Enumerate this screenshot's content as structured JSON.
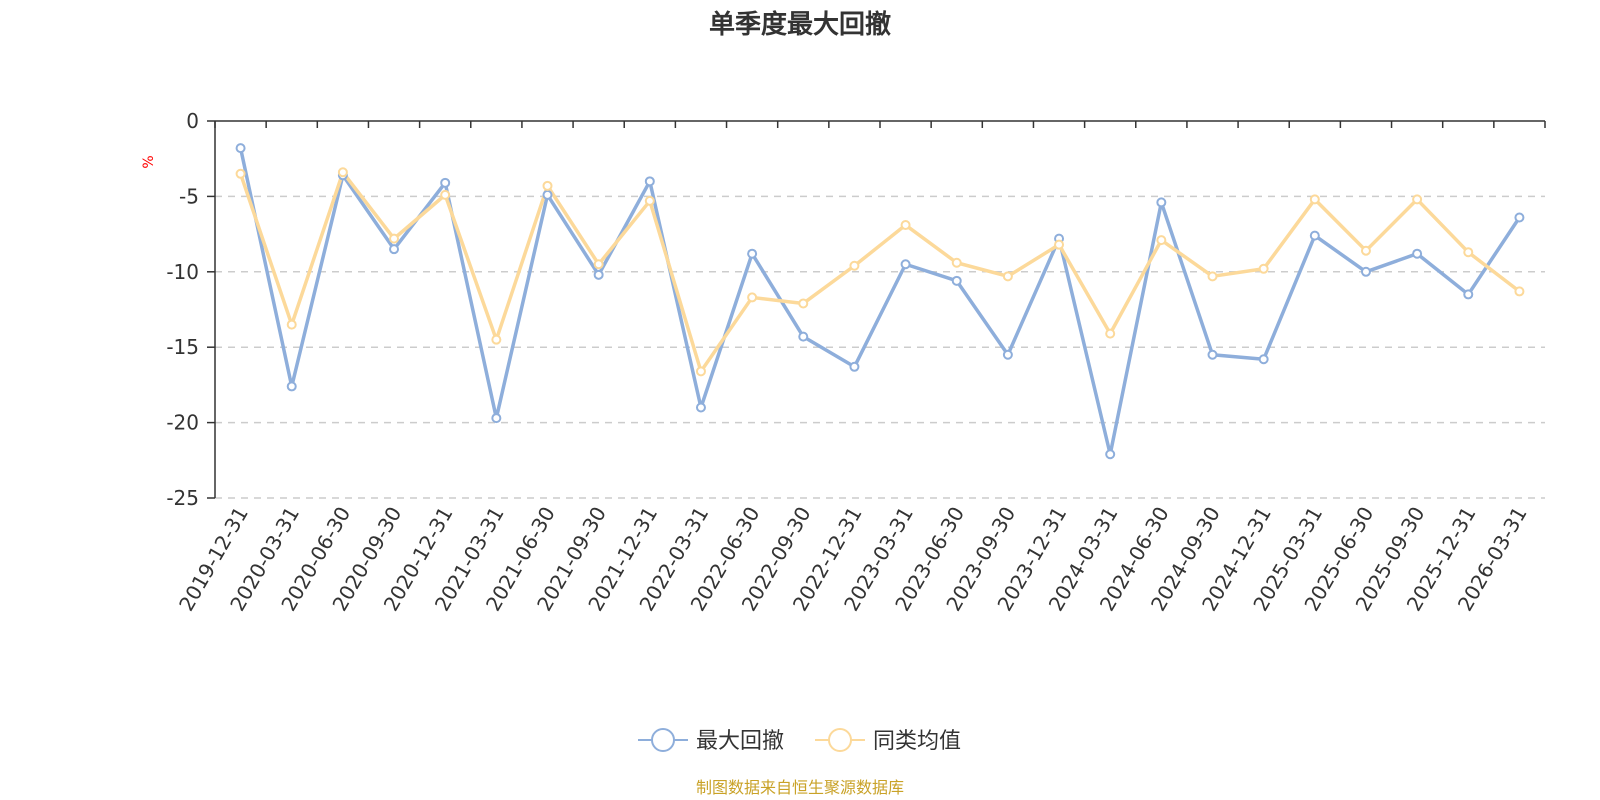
{
  "chart_data": {
    "type": "line",
    "title": "单季度最大回撤",
    "ylabel": "%",
    "xlabel": "",
    "ylim": [
      -25,
      0
    ],
    "yticks": [
      0,
      -5,
      -10,
      -15,
      -20,
      -25
    ],
    "grid": true,
    "legend_position": "bottom-center",
    "categories": [
      "2019-12-31",
      "2020-03-31",
      "2020-06-30",
      "2020-09-30",
      "2020-12-31",
      "2021-03-31",
      "2021-06-30",
      "2021-09-30",
      "2021-12-31",
      "2022-03-31",
      "2022-06-30",
      "2022-09-30",
      "2022-12-31",
      "2023-03-31",
      "2023-06-30",
      "2023-09-30",
      "2023-12-31",
      "2024-03-31",
      "2024-06-30",
      "2024-09-30",
      "2024-12-31",
      "2025-03-31",
      "2025-06-30",
      "2025-09-30",
      "2025-12-31",
      "2026-03-31"
    ],
    "series": [
      {
        "name": "最大回撤",
        "color": "#8eaedb",
        "values": [
          -1.8,
          -17.6,
          -3.6,
          -8.5,
          -4.1,
          -19.7,
          -4.9,
          -10.2,
          -4.0,
          -19.0,
          -8.8,
          -14.3,
          -16.3,
          -9.5,
          -10.6,
          -15.5,
          -7.8,
          -22.1,
          -5.4,
          -15.5,
          -15.8,
          -7.6,
          -10.0,
          -8.8,
          -11.5,
          -6.4
        ]
      },
      {
        "name": "同类均值",
        "color": "#fcd99a",
        "values": [
          -3.5,
          -13.5,
          -3.4,
          -7.8,
          -4.9,
          -14.5,
          -4.3,
          -9.5,
          -5.3,
          -16.6,
          -11.7,
          -12.1,
          -9.6,
          -6.9,
          -9.4,
          -10.3,
          -8.2,
          -14.1,
          -7.9,
          -10.3,
          -9.8,
          -5.2,
          -8.6,
          -5.2,
          -8.7,
          -11.3
        ]
      }
    ]
  },
  "source_text": "制图数据来自恒生聚源数据库",
  "colors": {
    "axis": "#333333",
    "grid": "#cccccc",
    "ylabel": "#ff0000",
    "source": "#c9a227"
  }
}
